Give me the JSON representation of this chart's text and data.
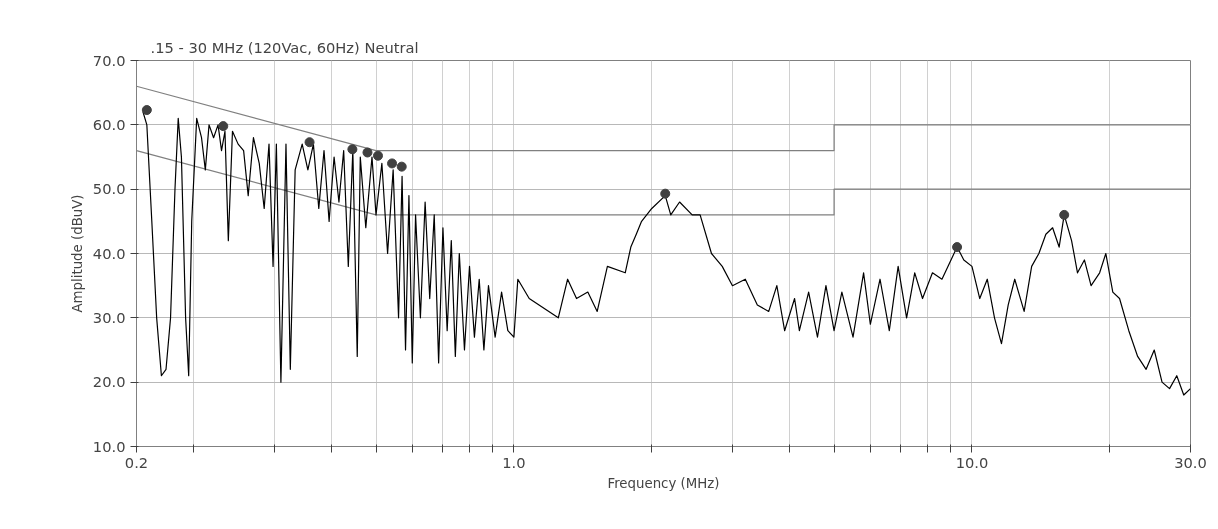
{
  "chart_data": {
    "type": "line",
    "title": ".15 - 30 MHz (120Vac, 60Hz) Neutral",
    "xlabel": "Frequency (MHz)",
    "ylabel": "Amplitude (dBuV)",
    "log": "x",
    "grid": true,
    "line_style": "solid",
    "xlim": [
      0.15,
      30
    ],
    "ylim": [
      10,
      70
    ],
    "xticks": [
      {
        "value": 0.15,
        "label": "0.2"
      },
      {
        "value": 0.2,
        "label": null
      },
      {
        "value": 0.3,
        "label": null
      },
      {
        "value": 0.4,
        "label": null
      },
      {
        "value": 0.5,
        "label": null
      },
      {
        "value": 0.6,
        "label": null
      },
      {
        "value": 0.7,
        "label": null
      },
      {
        "value": 0.8,
        "label": null
      },
      {
        "value": 0.9,
        "label": null
      },
      {
        "value": 1,
        "label": "1.0"
      },
      {
        "value": 2,
        "label": null
      },
      {
        "value": 3,
        "label": null
      },
      {
        "value": 4,
        "label": null
      },
      {
        "value": 5,
        "label": null
      },
      {
        "value": 6,
        "label": null
      },
      {
        "value": 7,
        "label": null
      },
      {
        "value": 8,
        "label": null
      },
      {
        "value": 9,
        "label": null
      },
      {
        "value": 10,
        "label": "10.0"
      },
      {
        "value": 20,
        "label": null
      },
      {
        "value": 30,
        "label": "30.0"
      }
    ],
    "yticks": [
      {
        "value": 10,
        "label": "10.0"
      },
      {
        "value": 20,
        "label": "20.0"
      },
      {
        "value": 30,
        "label": "30.0"
      },
      {
        "value": 40,
        "label": "40.0"
      },
      {
        "value": 50,
        "label": "50.0"
      },
      {
        "value": 60,
        "label": "60.0"
      },
      {
        "value": 70,
        "label": "70.0"
      }
    ],
    "series": [
      {
        "type": "line",
        "color": "#808080",
        "x": [
          0.15,
          0.5,
          5,
          5,
          30
        ],
        "values": [
          66,
          56,
          56,
          60,
          60
        ]
      },
      {
        "type": "line",
        "color": "#808080",
        "x": [
          0.15,
          0.5,
          5,
          5,
          30
        ],
        "values": [
          56,
          46,
          46,
          50,
          50
        ]
      },
      {
        "color": "#000000",
        "x": [
          0.155,
          0.158,
          0.162,
          0.166,
          0.17,
          0.174,
          0.178,
          0.182,
          0.185,
          0.188,
          0.192,
          0.195,
          0.198,
          0.203,
          0.208,
          0.212,
          0.216,
          0.221,
          0.226,
          0.23,
          0.234,
          0.238,
          0.243,
          0.25,
          0.257,
          0.263,
          0.27,
          0.278,
          0.285,
          0.292,
          0.298,
          0.303,
          0.31,
          0.318,
          0.325,
          0.333,
          0.345,
          0.355,
          0.365,
          0.375,
          0.385,
          0.395,
          0.405,
          0.415,
          0.425,
          0.435,
          0.445,
          0.455,
          0.462,
          0.475,
          0.49,
          0.5,
          0.515,
          0.53,
          0.545,
          0.56,
          0.57,
          0.58,
          0.59,
          0.6,
          0.61,
          0.625,
          0.64,
          0.655,
          0.67,
          0.685,
          0.7,
          0.715,
          0.73,
          0.745,
          0.76,
          0.78,
          0.8,
          0.82,
          0.84,
          0.86,
          0.88,
          0.91,
          0.94,
          0.97,
          1.0,
          1.02,
          1.08,
          1.25,
          1.31,
          1.37,
          1.45,
          1.52,
          1.6,
          1.75,
          1.8,
          1.85,
          1.9,
          2.0,
          2.14,
          2.2,
          2.3,
          2.45,
          2.55,
          2.7,
          2.85,
          3.0,
          3.2,
          3.4,
          3.6,
          3.75,
          3.9,
          4.1,
          4.2,
          4.4,
          4.6,
          4.8,
          5.0,
          5.2,
          5.5,
          5.8,
          6.0,
          6.3,
          6.6,
          6.9,
          7.2,
          7.5,
          7.8,
          8.2,
          8.6,
          9.0,
          9.28,
          9.6,
          10.0,
          10.4,
          10.8,
          11.2,
          11.6,
          12.0,
          12.4,
          13.0,
          13.5,
          14.0,
          14.5,
          15.0,
          15.5,
          15.9,
          16.5,
          17.0,
          17.6,
          18.2,
          19.0,
          19.6,
          20.3,
          21.0,
          22.0,
          23.0,
          24.0,
          25.0,
          26.0,
          27.0,
          28.0,
          29.0,
          30.0
        ],
        "values": [
          62,
          60,
          45,
          30,
          21,
          22,
          30,
          50,
          61,
          55,
          30,
          21,
          45,
          61,
          58,
          53,
          60,
          58,
          60,
          56,
          59,
          42,
          59,
          57,
          56,
          49,
          58,
          54,
          47,
          57,
          38,
          57,
          20,
          57,
          22,
          53,
          57,
          53,
          57,
          47,
          56,
          45,
          55,
          48,
          56,
          38,
          56,
          24,
          55,
          44,
          55,
          46,
          54,
          40,
          53,
          30,
          52,
          25,
          49,
          23,
          46,
          30,
          48,
          33,
          46,
          23,
          44,
          28,
          42,
          24,
          40,
          25,
          38,
          27,
          36,
          25,
          35,
          27,
          34,
          28,
          27,
          36,
          33,
          30,
          36,
          33,
          34,
          31,
          38,
          37,
          41,
          43,
          45,
          47,
          49,
          46,
          48,
          46,
          46,
          40,
          38,
          35,
          36,
          32,
          31,
          35,
          28,
          33,
          28,
          34,
          27,
          35,
          28,
          34,
          27,
          37,
          29,
          36,
          28,
          38,
          30,
          37,
          33,
          37,
          36,
          39,
          41,
          39,
          38,
          33,
          36,
          30,
          26,
          32,
          36,
          31,
          38,
          40,
          43,
          44,
          41,
          46,
          42,
          37,
          39,
          35,
          37,
          40,
          34,
          33,
          28,
          24,
          22,
          25,
          20,
          19,
          21,
          18,
          19
        ]
      },
      {
        "type": "scatter",
        "marker": "circle",
        "color": "#404040",
        "x": [
          0.158,
          0.232,
          0.358,
          0.444,
          0.479,
          0.505,
          0.542,
          0.569,
          2.14,
          9.28,
          15.9
        ],
        "values": [
          62.3,
          59.8,
          57.3,
          56.2,
          55.7,
          55.2,
          54.0,
          53.5,
          49.3,
          41.0,
          46.0
        ]
      }
    ]
  }
}
